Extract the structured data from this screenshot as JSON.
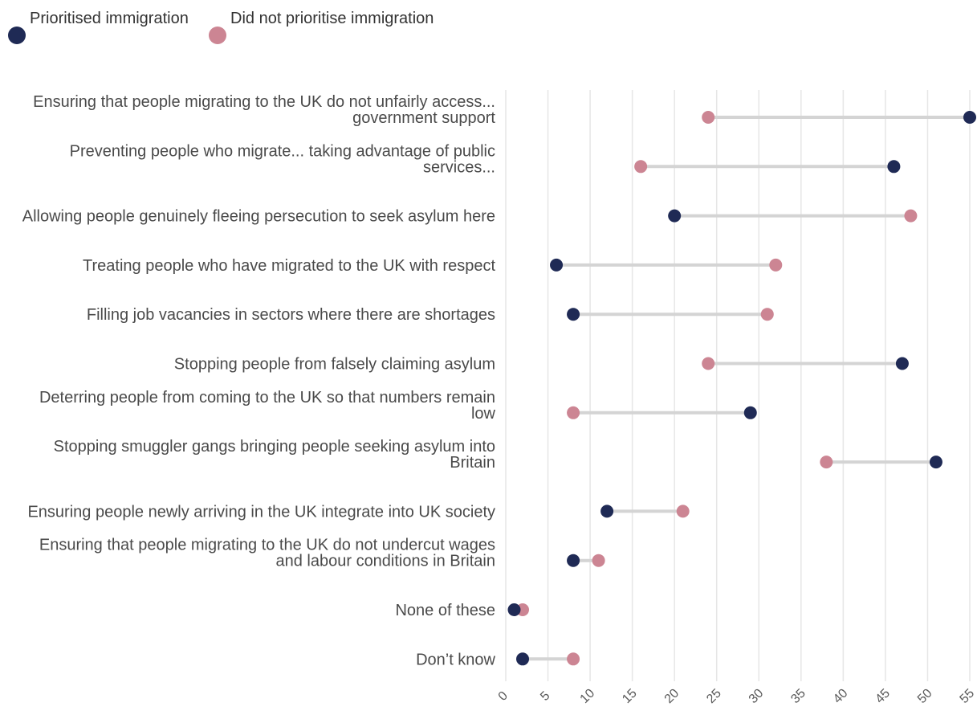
{
  "chart_data": {
    "type": "dumbbell",
    "legend": {
      "placement": "top-left",
      "items": [
        {
          "name": "Prioritised immigration",
          "color": "#1f2a55"
        },
        {
          "name": "Did not prioritise immigration",
          "color": "#cc8593"
        }
      ]
    },
    "x_axis": {
      "ticks": [
        0,
        5,
        10,
        15,
        20,
        25,
        30,
        35,
        40,
        45,
        50,
        55
      ],
      "range": [
        0,
        55
      ],
      "grid": true
    },
    "categories": [
      {
        "label_lines": [
          "Ensuring that people migrating to the UK do not unfairly access...",
          "government support"
        ],
        "prioritised": 55,
        "not_prioritised": 24
      },
      {
        "label_lines": [
          "Preventing people who migrate... taking advantage of public",
          "services..."
        ],
        "prioritised": 46,
        "not_prioritised": 16
      },
      {
        "label_lines": [
          "Allowing people genuinely fleeing persecution to seek asylum here"
        ],
        "prioritised": 20,
        "not_prioritised": 48
      },
      {
        "label_lines": [
          "Treating people who have migrated to the UK with respect"
        ],
        "prioritised": 6,
        "not_prioritised": 32
      },
      {
        "label_lines": [
          "Filling job vacancies in sectors where there are shortages"
        ],
        "prioritised": 8,
        "not_prioritised": 31
      },
      {
        "label_lines": [
          "Stopping people from falsely claiming asylum"
        ],
        "prioritised": 47,
        "not_prioritised": 24
      },
      {
        "label_lines": [
          "Deterring people from coming to the UK so that numbers remain",
          "low"
        ],
        "prioritised": 29,
        "not_prioritised": 8
      },
      {
        "label_lines": [
          "Stopping smuggler gangs bringing people seeking asylum into",
          "Britain"
        ],
        "prioritised": 51,
        "not_prioritised": 38
      },
      {
        "label_lines": [
          "Ensuring people newly arriving in the UK integrate into UK society"
        ],
        "prioritised": 12,
        "not_prioritised": 21
      },
      {
        "label_lines": [
          "Ensuring that people migrating to the UK do not undercut wages",
          "and labour conditions in Britain"
        ],
        "prioritised": 8,
        "not_prioritised": 11
      },
      {
        "label_lines": [
          "None of these"
        ],
        "prioritised": 1,
        "not_prioritised": 2
      },
      {
        "label_lines": [
          "Don’t know"
        ],
        "prioritised": 2,
        "not_prioritised": 8
      }
    ],
    "connector_color": "#d4d4d4",
    "grid_color": "#e6e6e6"
  }
}
